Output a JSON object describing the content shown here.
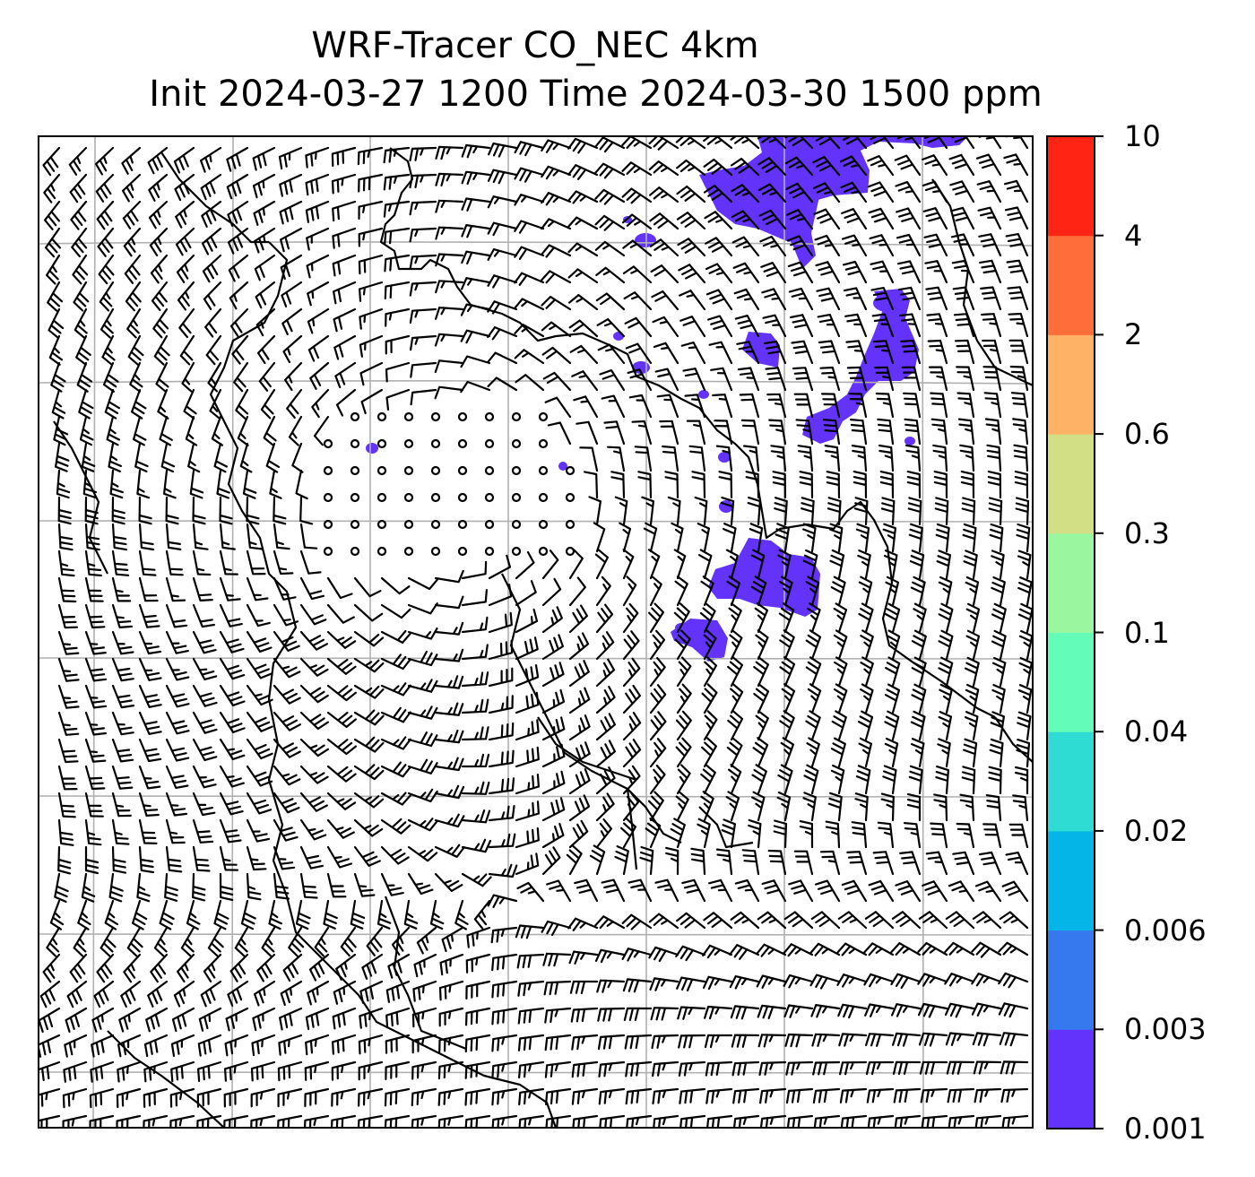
{
  "title_line1": "WRF-Tracer CO_NEC 4km",
  "title_line2": "Init 2024-03-27 1200 Time 2024-03-30 1500 ppm",
  "colorbar": {
    "ticks": [
      "0.001",
      "0.003",
      "0.006",
      "0.02",
      "0.04",
      "0.1",
      "0.3",
      "0.6",
      "2",
      "4",
      "10"
    ],
    "colors": [
      "#6333fb",
      "#3679ef",
      "#04b5e8",
      "#2edcd3",
      "#63fcb8",
      "#9af7a0",
      "#d3df84",
      "#feb266",
      "#ff6e3a",
      "#ff2414"
    ]
  },
  "layers": {
    "tracer_fill_color": "#6333fb",
    "barb_color": "#000000",
    "coastline_color": "#000000",
    "gridline_color": "#b0b0b0"
  }
}
